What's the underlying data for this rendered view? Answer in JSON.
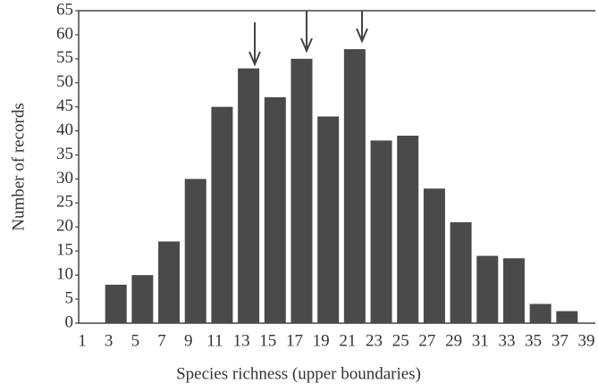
{
  "chart_data": {
    "type": "bar",
    "x_label": "Species richness (upper boundaries)",
    "y_label": "Number of records",
    "categories": [
      "1",
      "3",
      "5",
      "7",
      "9",
      "11",
      "13",
      "15",
      "17",
      "19",
      "21",
      "23",
      "25",
      "27",
      "29",
      "31",
      "33",
      "35",
      "37",
      "39"
    ],
    "values": [
      null,
      8,
      10,
      17,
      30,
      45,
      53,
      47,
      55,
      43,
      57,
      38,
      39,
      28,
      21,
      14,
      13.5,
      4,
      2.5,
      null
    ],
    "color": "#4a4a4a",
    "ylim": [
      0,
      65
    ],
    "yticks": [
      0,
      5,
      10,
      15,
      20,
      25,
      30,
      35,
      40,
      45,
      50,
      55,
      60,
      65
    ]
  }
}
